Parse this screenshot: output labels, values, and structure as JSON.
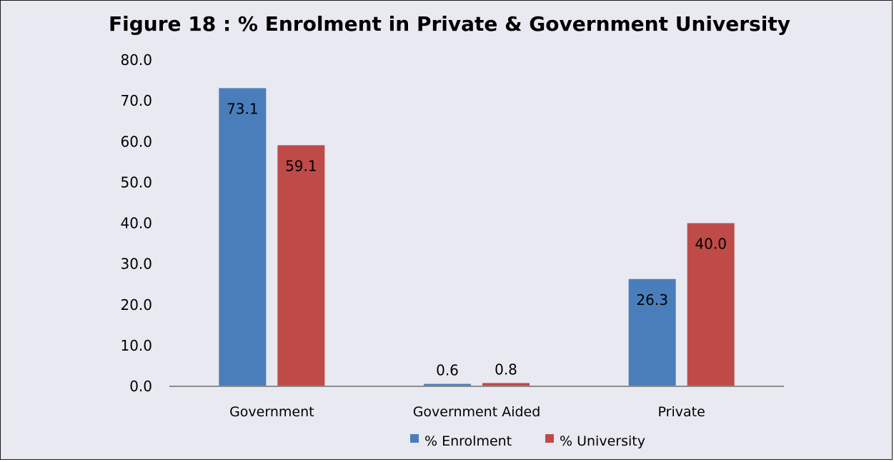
{
  "chart_data": {
    "type": "bar",
    "title": "Figure 18 : % Enrolment in Private & Government University",
    "xlabel": "",
    "ylabel": "",
    "categories": [
      "Government",
      "Government Aided",
      "Private"
    ],
    "series": [
      {
        "name": "% Enrolment",
        "values": [
          73.1,
          0.6,
          26.3
        ],
        "color": "#4a7ebb"
      },
      {
        "name": "% University",
        "values": [
          59.1,
          0.8,
          40.0
        ],
        "color": "#be4b48"
      }
    ],
    "ylim": [
      0,
      80
    ],
    "yticks": [
      "0.0",
      "10.0",
      "20.0",
      "30.0",
      "40.0",
      "50.0",
      "60.0",
      "70.0",
      "80.0"
    ],
    "data_labels": [
      [
        "73.1",
        "0.6",
        "26.3"
      ],
      [
        "59.1",
        "0.8",
        "40.0"
      ]
    ],
    "grid": false,
    "legend_position": "bottom"
  },
  "colors": {
    "background": "#e9e9f2",
    "axis": "#8c8c8c"
  }
}
